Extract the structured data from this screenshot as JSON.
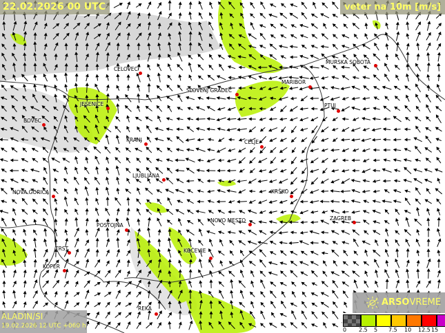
{
  "header": {
    "valid_time": "22.02.2026 00 UTC",
    "parameter": "veter na 10m [m/s]"
  },
  "model": {
    "name": "ALADIN/SI",
    "run": "19.02.2026 12 UTC +060 h"
  },
  "logo": {
    "brand_bold": "ARSO",
    "brand_light": "VREME",
    "icon": "sun-icon"
  },
  "legend": {
    "unit": "m/s",
    "ticks": [
      "0",
      "2.5",
      "5",
      "7.5",
      "10",
      "12.5",
      "15"
    ],
    "colors": [
      "#5a5a5a",
      "#b8f000",
      "#ffff00",
      "#ffc800",
      "#ff7800",
      "#ff0000",
      "#c800c8"
    ]
  },
  "cities": [
    {
      "name": "CELOVEC"
    },
    {
      "name": "SLOVENJ GRADEC"
    },
    {
      "name": "MARIBOR"
    },
    {
      "name": "MURSKA SOBOTA"
    },
    {
      "name": "PTUJ"
    },
    {
      "name": "JESENICE"
    },
    {
      "name": "BOVEC"
    },
    {
      "name": "KRANJ"
    },
    {
      "name": "CELJE"
    },
    {
      "name": "LJUBLJANA"
    },
    {
      "name": "NOVA GORICA"
    },
    {
      "name": "KRŠKO"
    },
    {
      "name": "ZAGREB"
    },
    {
      "name": "POSTOJNA"
    },
    {
      "name": "NOVO MESTO"
    },
    {
      "name": "TRST"
    },
    {
      "name": "KOČEVJE"
    },
    {
      "name": "KOPER"
    },
    {
      "name": "REKA"
    }
  ],
  "colors": {
    "wind_band_2_5": "#b8f000",
    "city_dot": "#e00000",
    "label_yellow": "#ffff66"
  }
}
